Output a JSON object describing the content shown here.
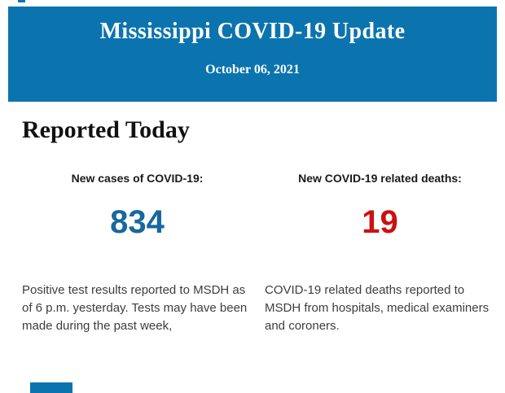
{
  "header": {
    "title": "Mississippi COVID-19 Update",
    "date": "October 06, 2021"
  },
  "section_title": "Reported Today",
  "stats": {
    "cases": {
      "label": "New cases of COVID-19:",
      "value": "834",
      "description": "Positive test results reported to MSDH as\nof 6 p.m. yesterday. Tests may have been\nmade during the past week,"
    },
    "deaths": {
      "label": "New COVID-19 related deaths:",
      "value": "19",
      "description": "COVID-19 related deaths reported to\nMSDH from hospitals, medical examiners\nand coroners."
    }
  },
  "colors": {
    "header_background": "#0b74ae",
    "cases_value": "#17689e",
    "deaths_value": "#cb1111",
    "body_text": "#3d3d3d"
  }
}
